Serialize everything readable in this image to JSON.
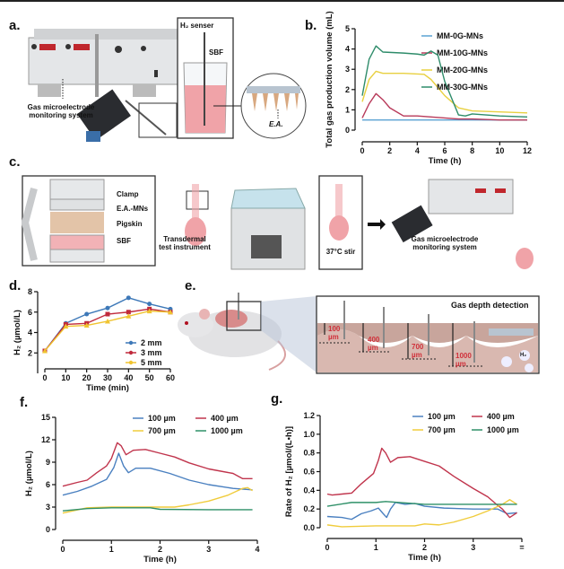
{
  "panel_labels": {
    "a": "a.",
    "b": "b.",
    "c": "c.",
    "d": "d.",
    "e": "e.",
    "f": "f.",
    "g": "g."
  },
  "diagram_a": {
    "system_label": "Gas microelectrode monitoring system",
    "sensor_label": "H₂ senser",
    "sbf_label": "SBF",
    "ea_label": "E.A."
  },
  "diagram_c": {
    "clamp": "Clamp",
    "ea_mns": "E.A.-MNs",
    "pigskin": "Pigskin",
    "sbf": "SBF",
    "instrument": "Transdermal test instrument",
    "stir": "37°C stir",
    "system_label": "Gas microelectrode monitoring system"
  },
  "diagram_e": {
    "title": "Gas depth detection",
    "depths": [
      "100 µm",
      "400 µm",
      "700 µm",
      "1000 µm"
    ],
    "gas": "H₂"
  },
  "colors": {
    "blue": "#4a80c0",
    "red": "#c0344c",
    "yellow": "#f0cc3c",
    "green": "#2f9068",
    "light_blue": "#5aa2d2"
  },
  "chart_data": [
    {
      "id": "b",
      "type": "line",
      "xlabel": "Time (h)",
      "ylabel": "Total gas production volume (mL)",
      "xlim": [
        0,
        12
      ],
      "ylim": [
        0,
        5
      ],
      "xticks": [
        "0",
        "2",
        "4",
        "6",
        "8",
        "10",
        "12"
      ],
      "yticks": [
        "0",
        "1",
        "2",
        "3",
        "4",
        "5"
      ],
      "legend": "top-right",
      "grid": false,
      "series": [
        {
          "name": "MM-0G-MNs",
          "color": "#5aa2d2",
          "x": [
            0,
            2,
            4,
            6,
            8,
            10,
            12
          ],
          "y": [
            0.5,
            0.5,
            0.5,
            0.5,
            0.5,
            0.5,
            0.5
          ]
        },
        {
          "name": "MM-10G-MNs",
          "color": "#b83a5a",
          "x": [
            0,
            0.5,
            1,
            1.5,
            2,
            3,
            4,
            5,
            6,
            7,
            8,
            10,
            12
          ],
          "y": [
            0.6,
            1.3,
            1.8,
            1.5,
            1.1,
            0.7,
            0.7,
            0.65,
            0.6,
            0.55,
            0.55,
            0.5,
            0.5
          ]
        },
        {
          "name": "MM-20G-MNs",
          "color": "#e8d040",
          "x": [
            0,
            0.5,
            1,
            1.5,
            3,
            4.5,
            5,
            6,
            7,
            8,
            10,
            12
          ],
          "y": [
            1.4,
            2.5,
            2.9,
            2.8,
            2.8,
            2.75,
            2.5,
            1.7,
            1.1,
            0.95,
            0.9,
            0.85
          ]
        },
        {
          "name": "MM-30G-MNs",
          "color": "#2e8c6a",
          "x": [
            0,
            0.5,
            1,
            1.5,
            3,
            4,
            4.5,
            5,
            5.5,
            6,
            7,
            7.5,
            8,
            9,
            10,
            12
          ],
          "y": [
            1.7,
            3.5,
            4.15,
            3.85,
            3.8,
            3.75,
            3.7,
            3.9,
            3.7,
            2.4,
            0.75,
            0.7,
            0.8,
            0.75,
            0.7,
            0.65
          ]
        }
      ]
    },
    {
      "id": "d",
      "type": "line",
      "xlabel": "Time (min)",
      "ylabel": "H₂ (µmol/L)",
      "xlim": [
        0,
        60
      ],
      "ylim": [
        0,
        8
      ],
      "xticks": [
        "0",
        "10",
        "20",
        "30",
        "40",
        "50",
        "60"
      ],
      "yticks": [
        "2",
        "4",
        "6",
        "8"
      ],
      "legend": "bottom-right",
      "grid": false,
      "series": [
        {
          "name": "2 mm",
          "color": "#3d78b8",
          "marker": "circle",
          "x": [
            0,
            10,
            20,
            30,
            40,
            50,
            60
          ],
          "y": [
            2.2,
            4.9,
            5.8,
            6.4,
            7.4,
            6.8,
            6.3
          ]
        },
        {
          "name": "3 mm",
          "color": "#c02a3c",
          "marker": "square",
          "x": [
            0,
            10,
            20,
            30,
            40,
            50,
            60
          ],
          "y": [
            2.2,
            4.8,
            4.9,
            5.8,
            6.0,
            6.3,
            6.0
          ]
        },
        {
          "name": "5 mm",
          "color": "#f0c430",
          "marker": "triangle",
          "x": [
            0,
            10,
            20,
            30,
            40,
            50,
            60
          ],
          "y": [
            2.2,
            4.6,
            4.7,
            5.1,
            5.6,
            6.1,
            6.0
          ]
        }
      ]
    },
    {
      "id": "f",
      "type": "line",
      "xlabel": "Time (h)",
      "ylabel": "H₂ (µmol/L)",
      "xlim": [
        0,
        4
      ],
      "ylim": [
        0,
        15
      ],
      "xticks": [
        "0",
        "1",
        "2",
        "3",
        "4"
      ],
      "yticks": [
        "0",
        "3",
        "6",
        "9",
        "12",
        "15"
      ],
      "legend": "top-right",
      "grid": false,
      "series": [
        {
          "name": "100 µm",
          "color": "#4a80c0",
          "x": [
            0,
            0.3,
            0.6,
            0.9,
            1.05,
            1.15,
            1.25,
            1.35,
            1.5,
            1.8,
            2.2,
            2.6,
            3,
            3.5,
            3.9
          ],
          "y": [
            4.6,
            5.1,
            5.8,
            6.7,
            8.3,
            10.2,
            8.5,
            7.6,
            8.2,
            8.2,
            7.5,
            6.6,
            6.0,
            5.5,
            5.3
          ]
        },
        {
          "name": "400 µm",
          "color": "#c0344c",
          "x": [
            0,
            0.3,
            0.5,
            0.7,
            0.9,
            1.0,
            1.12,
            1.2,
            1.3,
            1.45,
            1.7,
            2,
            2.3,
            2.6,
            3,
            3.5,
            3.7,
            3.9
          ],
          "y": [
            5.8,
            6.3,
            6.6,
            7.6,
            8.5,
            9.5,
            11.6,
            11.2,
            10.0,
            10.6,
            10.7,
            10.2,
            9.7,
            8.9,
            8.1,
            7.5,
            6.8,
            6.8
          ]
        },
        {
          "name": "700 µm",
          "color": "#f0cc3c",
          "x": [
            0,
            0.5,
            1,
            1.5,
            2,
            2.3,
            2.6,
            3,
            3.4,
            3.7,
            3.8,
            3.9
          ],
          "y": [
            2.2,
            2.9,
            3.0,
            3.0,
            3.0,
            3.0,
            3.3,
            3.8,
            4.6,
            5.5,
            5.6,
            5.2
          ]
        },
        {
          "name": "1000 µm",
          "color": "#2f9068",
          "x": [
            0,
            0.5,
            1,
            1.8,
            2,
            3,
            3.9
          ],
          "y": [
            2.5,
            2.8,
            2.9,
            2.9,
            2.7,
            2.65,
            2.65
          ]
        }
      ]
    },
    {
      "id": "g",
      "type": "line",
      "xlabel": "Time (h)",
      "ylabel": "Rate of H₂ [µmol/(L•h)]",
      "xlim": [
        0,
        4
      ],
      "ylim": [
        0,
        1.2
      ],
      "xticks": [
        "0",
        "1",
        "2",
        "3",
        "="
      ],
      "yticks": [
        "0.0",
        "0.2",
        "0.4",
        "0.6",
        "0.8",
        "1.0",
        "1.2"
      ],
      "legend": "top-right",
      "grid": false,
      "series": [
        {
          "name": "100 µm",
          "color": "#4a80c0",
          "x": [
            0,
            0.3,
            0.5,
            0.7,
            0.9,
            1.05,
            1.15,
            1.22,
            1.3,
            1.4,
            1.6,
            1.8,
            2,
            2.4,
            3,
            3.5,
            3.7,
            3.9
          ],
          "y": [
            0.12,
            0.11,
            0.09,
            0.15,
            0.18,
            0.21,
            0.15,
            0.11,
            0.2,
            0.27,
            0.25,
            0.26,
            0.23,
            0.21,
            0.2,
            0.2,
            0.15,
            0.16
          ]
        },
        {
          "name": "400 µm",
          "color": "#c0344c",
          "x": [
            0,
            0.1,
            0.3,
            0.5,
            0.7,
            0.95,
            1.05,
            1.12,
            1.2,
            1.3,
            1.45,
            1.7,
            2,
            2.3,
            2.6,
            3,
            3.3,
            3.5,
            3.6,
            3.75,
            3.9
          ],
          "y": [
            0.36,
            0.35,
            0.36,
            0.37,
            0.47,
            0.58,
            0.72,
            0.85,
            0.8,
            0.7,
            0.75,
            0.76,
            0.71,
            0.66,
            0.55,
            0.42,
            0.33,
            0.24,
            0.2,
            0.11,
            0.16
          ]
        },
        {
          "name": "700 µm",
          "color": "#f0cc3c",
          "x": [
            0,
            0.3,
            1,
            1.8,
            2,
            2.3,
            2.6,
            3,
            3.3,
            3.6,
            3.75,
            3.9
          ],
          "y": [
            0.03,
            0.01,
            0.02,
            0.02,
            0.04,
            0.03,
            0.06,
            0.12,
            0.18,
            0.25,
            0.3,
            0.25
          ]
        },
        {
          "name": "1000 µm",
          "color": "#2f9068",
          "x": [
            0,
            0.5,
            1,
            1.2,
            2,
            3,
            3.9
          ],
          "y": [
            0.23,
            0.27,
            0.27,
            0.28,
            0.25,
            0.25,
            0.25
          ]
        }
      ]
    }
  ]
}
